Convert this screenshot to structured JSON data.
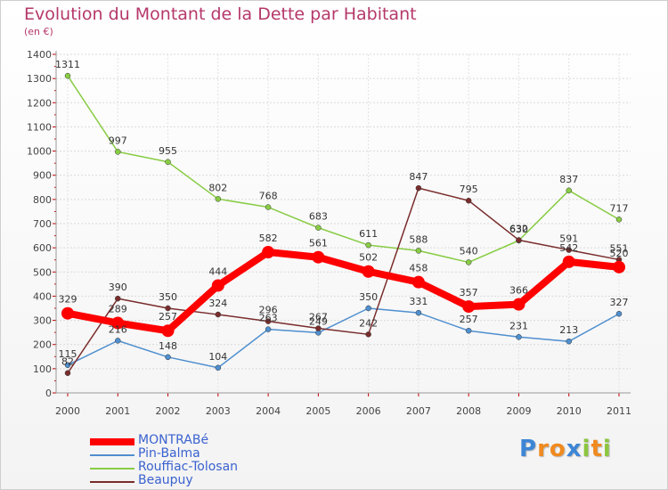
{
  "title": "Evolution du Montant de la Dette par Habitant",
  "subtitle": "(en €)",
  "chart_data": {
    "type": "line",
    "title": "Evolution du Montant de la Dette par Habitant",
    "subtitle": "(en €)",
    "x": [
      "2000",
      "2001",
      "2002",
      "2003",
      "2004",
      "2005",
      "2006",
      "2007",
      "2008",
      "2009",
      "2010",
      "2011"
    ],
    "ylim": [
      0,
      1400
    ],
    "yticks": [
      "0",
      "100",
      "200",
      "300",
      "400",
      "500",
      "600",
      "700",
      "800",
      "900",
      "1000",
      "1100",
      "1200",
      "1300",
      "1400"
    ],
    "grid": true,
    "legend": "bottom-left",
    "series": [
      {
        "name": "MONTRABé",
        "color": "#ff0000",
        "values": [
          329,
          289,
          257,
          444,
          582,
          561,
          502,
          458,
          357,
          366,
          542,
          520
        ],
        "labels": [
          "329",
          "289",
          "257",
          "444",
          "582",
          "561",
          "502",
          "458",
          "357",
          "366",
          "542",
          "520"
        ]
      },
      {
        "name": "Pin-Balma",
        "color": "#4f8fcf",
        "values": [
          115,
          216,
          148,
          104,
          263,
          249,
          350,
          331,
          257,
          231,
          213,
          327
        ],
        "labels": [
          "115",
          "216",
          "148",
          "104",
          "263",
          "249",
          "350",
          "331",
          "257",
          "231",
          "213",
          "327"
        ]
      },
      {
        "name": "Rouffiac-Tolosan",
        "color": "#88cc44",
        "values": [
          1311,
          997,
          955,
          802,
          768,
          683,
          611,
          588,
          540,
          630,
          837,
          717
        ],
        "labels": [
          "1311",
          "997",
          "955",
          "802",
          "768",
          "683",
          "611",
          "588",
          "540",
          "630",
          "837",
          "717"
        ]
      },
      {
        "name": "Beaupuy",
        "color": "#7a2c2c",
        "values": [
          82,
          390,
          350,
          324,
          296,
          267,
          242,
          847,
          795,
          632,
          591,
          551
        ],
        "labels": [
          "82",
          "390",
          "350",
          "324",
          "296",
          "267",
          "242",
          "847",
          "795",
          "632",
          "591",
          "551"
        ]
      }
    ]
  },
  "logo": {
    "text": "Proxiti",
    "letters": [
      "P",
      "r",
      "o",
      "x",
      "i",
      "t",
      "i"
    ],
    "colors": [
      "#3d86d6",
      "#f08a1e",
      "#f08a1e",
      "#3d86d6",
      "#8cc63f",
      "#f08a1e",
      "#8cc63f"
    ]
  }
}
